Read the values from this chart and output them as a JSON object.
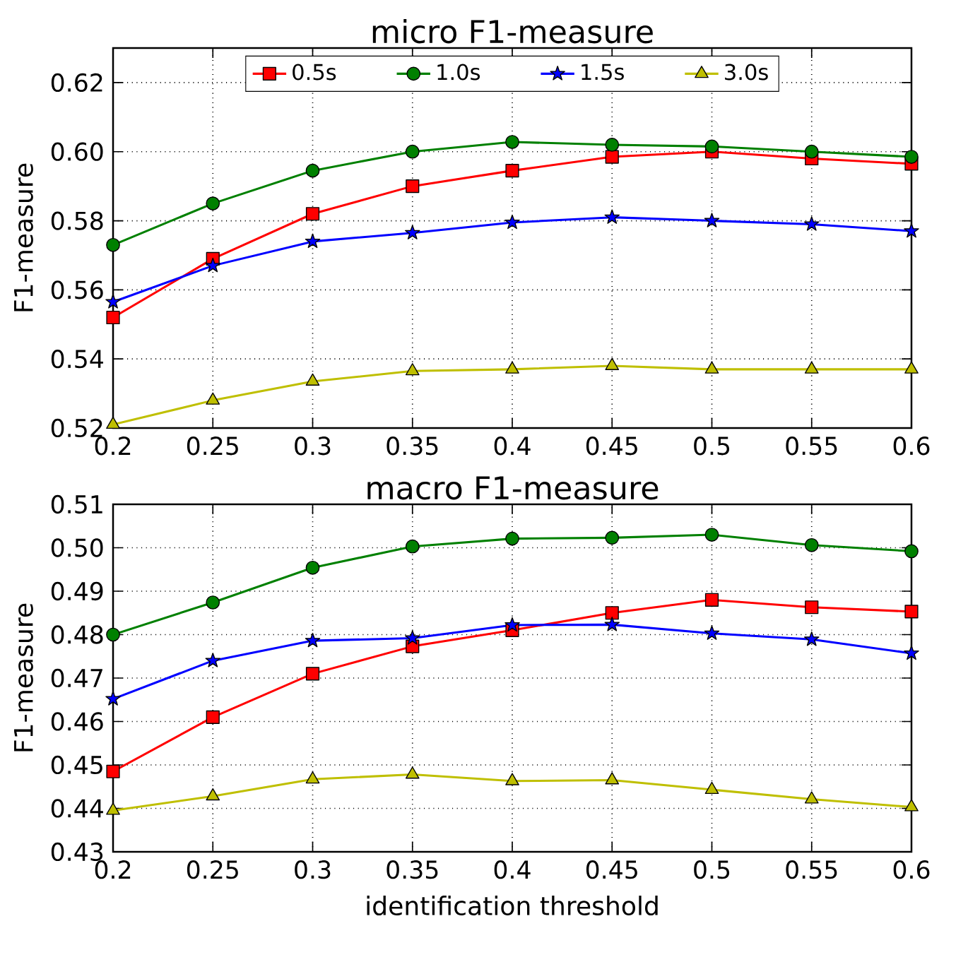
{
  "chart_data": [
    {
      "type": "line",
      "title": "micro F1-measure",
      "ylabel": "F1-measure",
      "x": [
        0.2,
        0.25,
        0.3,
        0.35,
        0.4,
        0.45,
        0.5,
        0.55,
        0.6
      ],
      "xlim": [
        0.2,
        0.6
      ],
      "xticks": [
        0.2,
        0.25,
        0.3,
        0.35,
        0.4,
        0.45,
        0.5,
        0.55,
        0.6
      ],
      "ylim": [
        0.52,
        0.63
      ],
      "yticks": [
        {
          "value": 0.52,
          "label": "0.52"
        },
        {
          "value": 0.54,
          "label": "0.54"
        },
        {
          "value": 0.56,
          "label": "0.56"
        },
        {
          "value": 0.58,
          "label": "0.58"
        },
        {
          "value": 0.6,
          "label": "0.60"
        },
        {
          "value": 0.62,
          "label": "0.62"
        }
      ],
      "grid": true,
      "legend": "top",
      "line_style": "solid",
      "series": [
        {
          "name": "0.5s",
          "color": "#ff0000",
          "marker": "square",
          "values": [
            0.552,
            0.569,
            0.582,
            0.59,
            0.5945,
            0.5985,
            0.6,
            0.598,
            0.5965
          ]
        },
        {
          "name": "1.0s",
          "color": "#008000",
          "marker": "circle",
          "values": [
            0.573,
            0.585,
            0.5945,
            0.6,
            0.6028,
            0.602,
            0.6015,
            0.6,
            0.5985
          ]
        },
        {
          "name": "1.5s",
          "color": "#0000ff",
          "marker": "star",
          "values": [
            0.5565,
            0.567,
            0.574,
            0.5765,
            0.5795,
            0.581,
            0.58,
            0.579,
            0.577
          ]
        },
        {
          "name": "3.0s",
          "color": "#bfbf00",
          "marker": "triangle",
          "values": [
            0.521,
            0.528,
            0.5335,
            0.5365,
            0.537,
            0.538,
            0.537,
            0.537,
            0.537
          ]
        }
      ]
    },
    {
      "type": "line",
      "title": "macro F1-measure",
      "xlabel": "identification threshold",
      "ylabel": "F1-measure",
      "x": [
        0.2,
        0.25,
        0.3,
        0.35,
        0.4,
        0.45,
        0.5,
        0.55,
        0.6
      ],
      "xlim": [
        0.2,
        0.6
      ],
      "xticks": [
        0.2,
        0.25,
        0.3,
        0.35,
        0.4,
        0.45,
        0.5,
        0.55,
        0.6
      ],
      "ylim": [
        0.43,
        0.51
      ],
      "yticks": [
        {
          "value": 0.43,
          "label": "0.43"
        },
        {
          "value": 0.44,
          "label": "0.44"
        },
        {
          "value": 0.45,
          "label": "0.45"
        },
        {
          "value": 0.46,
          "label": "0.46"
        },
        {
          "value": 0.47,
          "label": "0.47"
        },
        {
          "value": 0.48,
          "label": "0.48"
        },
        {
          "value": 0.49,
          "label": "0.49"
        },
        {
          "value": 0.5,
          "label": "0.50"
        },
        {
          "value": 0.51,
          "label": "0.51"
        }
      ],
      "grid": true,
      "line_style": "solid",
      "series": [
        {
          "color": "#ff0000",
          "marker": "square",
          "values": [
            0.4485,
            0.461,
            0.471,
            0.4773,
            0.481,
            0.485,
            0.488,
            0.4863,
            0.4853
          ]
        },
        {
          "color": "#008000",
          "marker": "circle",
          "values": [
            0.48,
            0.4874,
            0.4954,
            0.5003,
            0.5021,
            0.5023,
            0.503,
            0.5006,
            0.4992
          ]
        },
        {
          "color": "#0000ff",
          "marker": "star",
          "values": [
            0.4652,
            0.474,
            0.4786,
            0.4792,
            0.4822,
            0.4823,
            0.4803,
            0.4789,
            0.4757
          ]
        },
        {
          "color": "#bfbf00",
          "marker": "triangle",
          "values": [
            0.4395,
            0.4428,
            0.4467,
            0.4478,
            0.4463,
            0.4465,
            0.4443,
            0.4421,
            0.4403
          ]
        }
      ]
    }
  ]
}
